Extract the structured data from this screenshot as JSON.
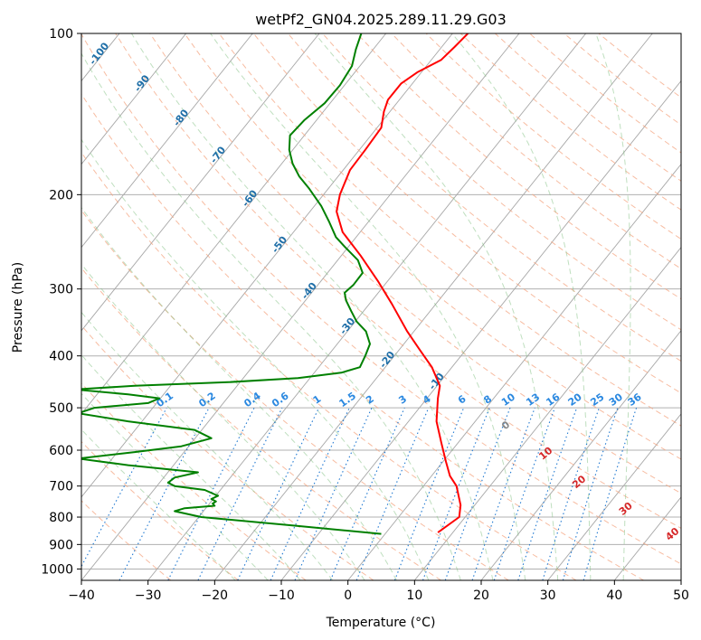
{
  "chart_data": {
    "type": "line",
    "title": "wetPf2_GN04.2025.289.11.29.G03",
    "xlabel": "Temperature (°C)",
    "ylabel": "Pressure (hPa)",
    "xlim": [
      -40,
      50
    ],
    "ylim": [
      1050,
      100
    ],
    "y_scale": "log",
    "x_ticks": [
      -40,
      -30,
      -20,
      -10,
      0,
      10,
      20,
      30,
      40,
      50
    ],
    "x_tick_labels": [
      "−40",
      "−30",
      "−20",
      "−10",
      "0",
      "10",
      "20",
      "30",
      "40",
      "50"
    ],
    "y_ticks": [
      100,
      200,
      300,
      400,
      500,
      600,
      700,
      800,
      900,
      1000
    ],
    "y_tick_labels": [
      "100",
      "200",
      "300",
      "400",
      "500",
      "600",
      "700",
      "800",
      "900",
      "1000"
    ],
    "grid": true,
    "series": [
      {
        "role": "temperature",
        "color": "#ff0000",
        "points": [
          {
            "p": 855,
            "t": 13.5
          },
          {
            "p": 800,
            "t": 16.7
          },
          {
            "p": 760,
            "t": 16.9
          },
          {
            "p": 700,
            "t": 16.3
          },
          {
            "p": 670,
            "t": 15.3
          },
          {
            "p": 630,
            "t": 14.7
          },
          {
            "p": 580,
            "t": 14.0
          },
          {
            "p": 530,
            "t": 13.3
          },
          {
            "p": 480,
            "t": 13.5
          },
          {
            "p": 455,
            "t": 13.8
          },
          {
            "p": 420,
            "t": 12.6
          },
          {
            "p": 390,
            "t": 10.8
          },
          {
            "p": 360,
            "t": 8.9
          },
          {
            "p": 320,
            "t": 6.6
          },
          {
            "p": 290,
            "t": 4.5
          },
          {
            "p": 260,
            "t": 1.9
          },
          {
            "p": 235,
            "t": -0.8
          },
          {
            "p": 215,
            "t": -1.7
          },
          {
            "p": 200,
            "t": -1.2
          },
          {
            "p": 180,
            "t": 0.3
          },
          {
            "p": 165,
            "t": 2.6
          },
          {
            "p": 150,
            "t": 5.0
          },
          {
            "p": 140,
            "t": 5.4
          },
          {
            "p": 133,
            "t": 6.0
          },
          {
            "p": 124,
            "t": 8.0
          },
          {
            "p": 118,
            "t": 10.5
          },
          {
            "p": 112,
            "t": 14.0
          },
          {
            "p": 106,
            "t": 16.0
          },
          {
            "p": 100,
            "t": 18.0
          }
        ]
      },
      {
        "role": "dewpoint",
        "color": "#008000",
        "points": [
          {
            "p": 860,
            "t": 5.0
          },
          {
            "p": 830,
            "t": -8.0
          },
          {
            "p": 800,
            "t": -22.0
          },
          {
            "p": 780,
            "t": -26.0
          },
          {
            "p": 770,
            "t": -24.5
          },
          {
            "p": 762,
            "t": -20.0
          },
          {
            "p": 755,
            "t": -20.3
          },
          {
            "p": 748,
            "t": -19.8
          },
          {
            "p": 740,
            "t": -20.5
          },
          {
            "p": 730,
            "t": -19.5
          },
          {
            "p": 712,
            "t": -21.5
          },
          {
            "p": 700,
            "t": -26.0
          },
          {
            "p": 690,
            "t": -27.0
          },
          {
            "p": 675,
            "t": -26.0
          },
          {
            "p": 660,
            "t": -22.5
          },
          {
            "p": 640,
            "t": -33.0
          },
          {
            "p": 622,
            "t": -40.5
          },
          {
            "p": 605,
            "t": -32.0
          },
          {
            "p": 590,
            "t": -25.0
          },
          {
            "p": 570,
            "t": -20.5
          },
          {
            "p": 550,
            "t": -23.0
          },
          {
            "p": 530,
            "t": -33.0
          },
          {
            "p": 512,
            "t": -40.5
          },
          {
            "p": 500,
            "t": -38.0
          },
          {
            "p": 490,
            "t": -30.0
          },
          {
            "p": 480,
            "t": -28.3
          },
          {
            "p": 472,
            "t": -33.0
          },
          {
            "p": 462,
            "t": -41.0
          },
          {
            "p": 455,
            "t": -32.0
          },
          {
            "p": 448,
            "t": -18.0
          },
          {
            "p": 440,
            "t": -7.5
          },
          {
            "p": 430,
            "t": -1.0
          },
          {
            "p": 420,
            "t": 1.8
          },
          {
            "p": 400,
            "t": 2.6
          },
          {
            "p": 380,
            "t": 3.3
          },
          {
            "p": 360,
            "t": 2.7
          },
          {
            "p": 345,
            "t": 1.3
          },
          {
            "p": 330,
            "t": 0.5
          },
          {
            "p": 315,
            "t": -0.3
          },
          {
            "p": 305,
            "t": -0.5
          },
          {
            "p": 295,
            "t": 0.8
          },
          {
            "p": 280,
            "t": 2.2
          },
          {
            "p": 265,
            "t": 1.5
          },
          {
            "p": 250,
            "t": -0.5
          },
          {
            "p": 240,
            "t": -1.8
          },
          {
            "p": 225,
            "t": -2.8
          },
          {
            "p": 210,
            "t": -4.0
          },
          {
            "p": 195,
            "t": -5.8
          },
          {
            "p": 185,
            "t": -7.3
          },
          {
            "p": 175,
            "t": -8.3
          },
          {
            "p": 165,
            "t": -8.8
          },
          {
            "p": 155,
            "t": -8.7
          },
          {
            "p": 145,
            "t": -6.5
          },
          {
            "p": 135,
            "t": -3.5
          },
          {
            "p": 125,
            "t": -1.2
          },
          {
            "p": 115,
            "t": 0.6
          },
          {
            "p": 107,
            "t": 1.2
          },
          {
            "p": 100,
            "t": 2.0
          }
        ]
      }
    ],
    "isotherm_labels": [
      "-100",
      "-90",
      "-80",
      "-70",
      "-60",
      "-50",
      "-40",
      "-30",
      "-20",
      "-10"
    ],
    "isotherm_label_values": [
      -100,
      -90,
      -80,
      -70,
      -60,
      -50,
      -40,
      -30,
      -20,
      -10
    ],
    "mixing_ratio_labels": [
      "0.1",
      "0.2",
      "0.4",
      "0.6",
      "1",
      "1.5",
      "2",
      "3",
      "4",
      "6",
      "8",
      "10",
      "13",
      "16",
      "20",
      "25",
      "30",
      "36"
    ],
    "dry_adiabat_labels": [
      "0",
      "10",
      "20",
      "30",
      "40"
    ]
  }
}
